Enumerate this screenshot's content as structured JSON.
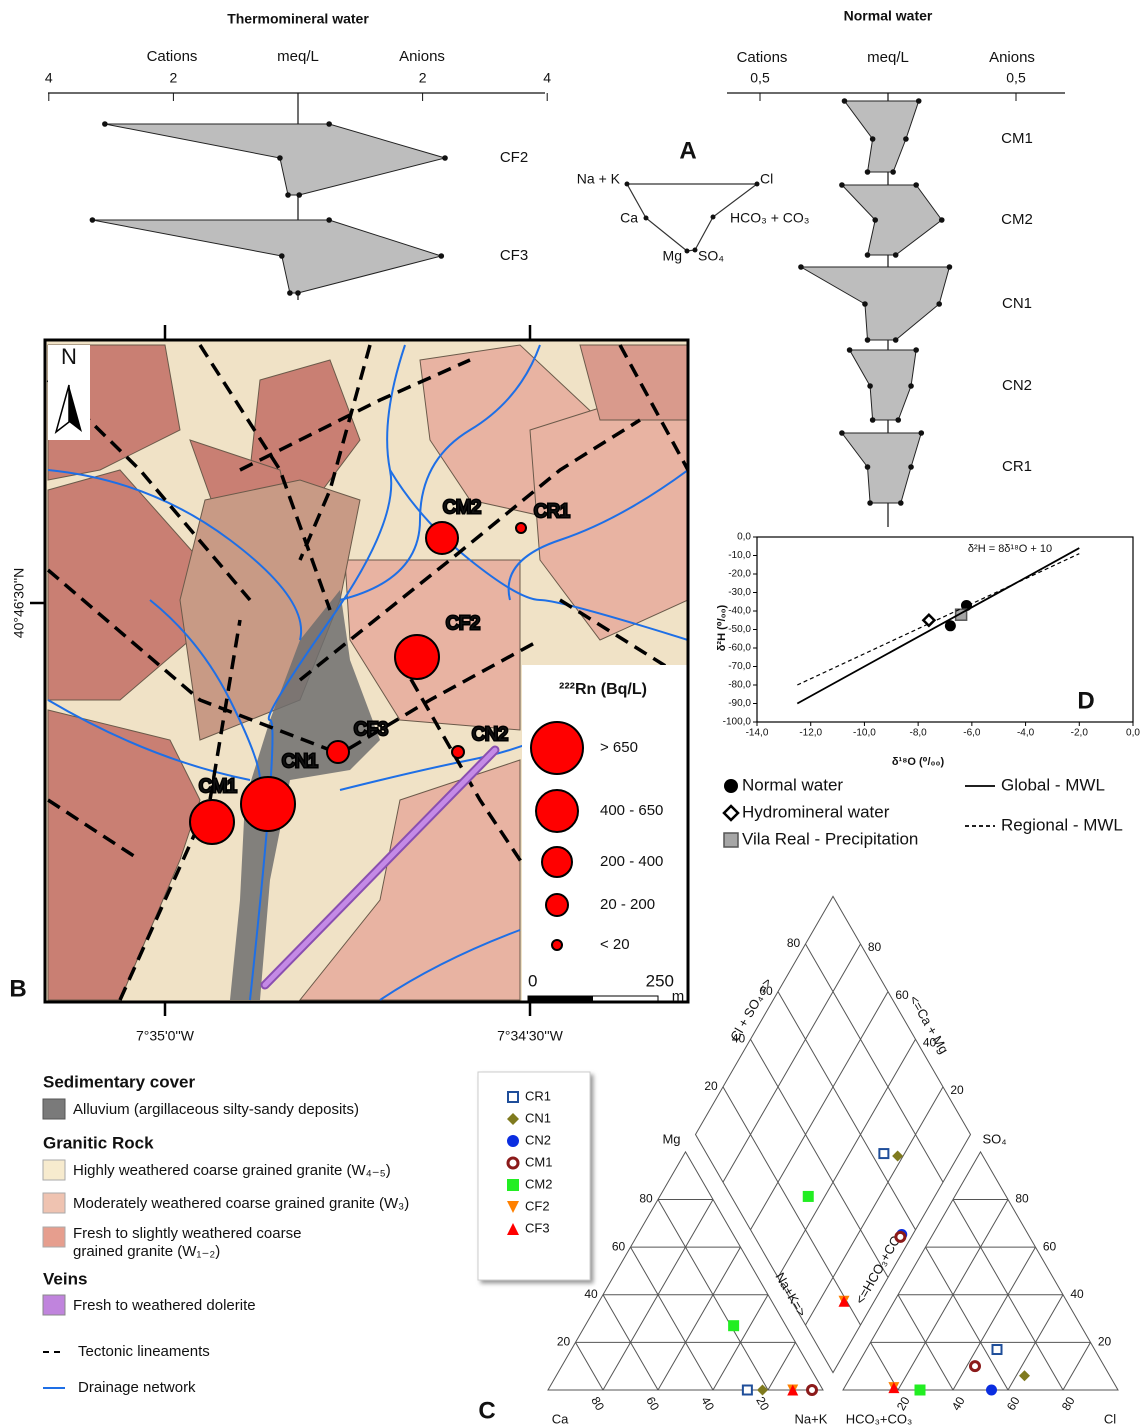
{
  "panel_labels": {
    "a": "A",
    "b": "B",
    "c": "C",
    "d": "D"
  },
  "stiff": {
    "ion_legend": {
      "top_left": "Na + K",
      "top_right": "Cl",
      "mid_left": "Ca",
      "mid_right": "HCO₃ + CO₃",
      "bottom_left": "Mg",
      "bottom_right": "SO₄"
    },
    "thermomineral": {
      "title": "Thermomineral water",
      "cations_label": "Cations",
      "unit": "meq/L",
      "anions_label": "Anions",
      "cation_ticks": [
        4,
        2
      ],
      "anion_ticks": [
        2,
        4
      ],
      "samples": [
        {
          "name": "CF2",
          "na_k": 3.1,
          "cl": 0.5,
          "ca": 0.29,
          "hco3": 2.36,
          "mg": 0.16,
          "so4": 0.02
        },
        {
          "name": "CF3",
          "na_k": 3.3,
          "cl": 0.5,
          "ca": 0.26,
          "hco3": 2.3,
          "mg": 0.13,
          "so4": 0.0
        }
      ]
    },
    "normal": {
      "title": "Normal water",
      "cations_label": "Cations",
      "unit": "meq/L",
      "anions_label": "Anions",
      "cation_ticks": [
        {
          "value": 0.5,
          "label": "0,5"
        }
      ],
      "anion_ticks": [
        {
          "value": 0.5,
          "label": "0,5"
        }
      ],
      "samples": [
        {
          "name": "CM1",
          "na_k": 0.17,
          "cl": 0.12,
          "ca": 0.06,
          "hco3": 0.07,
          "mg": 0.08,
          "so4": 0.02
        },
        {
          "name": "CM2",
          "na_k": 0.18,
          "cl": 0.11,
          "ca": 0.05,
          "hco3": 0.21,
          "mg": 0.08,
          "so4": 0.03
        },
        {
          "name": "CN1",
          "na_k": 0.34,
          "cl": 0.24,
          "ca": 0.09,
          "hco3": 0.2,
          "mg": 0.08,
          "so4": 0.03
        },
        {
          "name": "CN2",
          "na_k": 0.15,
          "cl": 0.11,
          "ca": 0.07,
          "hco3": 0.09,
          "mg": 0.06,
          "so4": 0.04
        },
        {
          "name": "CR1",
          "na_k": 0.18,
          "cl": 0.13,
          "ca": 0.08,
          "hco3": 0.09,
          "mg": 0.07,
          "so4": 0.05
        }
      ]
    }
  },
  "map": {
    "north": "N",
    "lat_label": "40°46'30''N",
    "lon_labels": [
      "7°35'0''W",
      "7°34'30''W"
    ],
    "sites": [
      "CM2",
      "CR1",
      "CF2",
      "CF3",
      "CN2",
      "CN1",
      "CM1"
    ],
    "radon_legend": {
      "title": "²²²Rn (Bq/L)",
      "classes": [
        "> 650",
        "400 - 650",
        "200 - 400",
        "20 - 200",
        "< 20"
      ]
    },
    "scale": {
      "start": 0,
      "end": 250,
      "unit": "m"
    }
  },
  "legend": {
    "sedimentary": {
      "title": "Sedimentary cover",
      "items": [
        "Alluvium (argillaceous silty-sandy deposits)"
      ]
    },
    "granitic": {
      "title": "Granitic Rock",
      "items": [
        "Highly weathered coarse grained granite (W₄₋₅)",
        "Moderately weathered coarse grained granite (W₃)",
        "Fresh to slightly weathered coarse",
        "grained granite (W₁₋₂)"
      ]
    },
    "veins": {
      "title": "Veins",
      "items": [
        "Fresh to weathered dolerite"
      ]
    },
    "lines": [
      "Tectonic lineaments",
      "Drainage network"
    ]
  },
  "piper": {
    "ticks": [
      20,
      40,
      60,
      80
    ],
    "labels": {
      "mg": "Mg",
      "ca": "Ca",
      "na_k": "Na+K",
      "so4": "SO₄",
      "hco3": "HCO₃+CO₃",
      "cl": "Cl",
      "cl_so4_axis": "Cl + SO₄ =>",
      "ca_mg_axis": "<=Ca + Mg",
      "na_k_axis": "Na+K=>",
      "hco3_axis": "<=HCO₃+CO₃"
    },
    "samples": [
      {
        "name": "CR1",
        "marker": "open-square",
        "color": "#1f4e9a",
        "mg": 0,
        "na_k": 72.5,
        "so4": 17,
        "cl": 47.5
      },
      {
        "name": "CN1",
        "marker": "diamond",
        "color": "#7f7a1e",
        "mg": 0,
        "na_k": 78,
        "so4": 6,
        "cl": 63
      },
      {
        "name": "CN2",
        "marker": "circle",
        "color": "#0a2de0",
        "mg": 0,
        "na_k": 96,
        "so4": 0,
        "cl": 54
      },
      {
        "name": "CM1",
        "marker": "ring",
        "color": "#8b1a1a",
        "mg": 0,
        "na_k": 96,
        "so4": 10,
        "cl": 43
      },
      {
        "name": "CM2",
        "marker": "square",
        "color": "#22ee22",
        "mg": 27,
        "na_k": 54,
        "so4": 0,
        "cl": 28
      },
      {
        "name": "CF2",
        "marker": "triangle-down",
        "color": "#ff8000",
        "mg": 0,
        "na_k": 89,
        "so4": 1,
        "cl": 18
      },
      {
        "name": "CF3",
        "marker": "triangle",
        "color": "#ff0000",
        "mg": 0,
        "na_k": 89,
        "so4": 1,
        "cl": 18
      }
    ]
  },
  "chart_data": {
    "type": "scatter",
    "equation": "δ²H = 8δ¹⁸O + 10",
    "xlabel": "δ¹⁸O (⁰/₀₀)",
    "ylabel": "δ²H (⁰/₀₀)",
    "xlim": [
      -14,
      0
    ],
    "ylim": [
      -100,
      0
    ],
    "xticks": [
      {
        "value": -14,
        "label": "-14,0"
      },
      {
        "value": -12,
        "label": "-12,0"
      },
      {
        "value": -10,
        "label": "-10,0"
      },
      {
        "value": -8,
        "label": "-8,0"
      },
      {
        "value": -6,
        "label": "-6,0"
      },
      {
        "value": -4,
        "label": "-4,0"
      },
      {
        "value": -2,
        "label": "-2,0"
      },
      {
        "value": 0,
        "label": "0,0"
      }
    ],
    "yticks": [
      {
        "value": 0,
        "label": "0,0"
      },
      {
        "value": -10,
        "label": "-10,0"
      },
      {
        "value": -20,
        "label": "-20,0"
      },
      {
        "value": -30,
        "label": "-30,0"
      },
      {
        "value": -40,
        "label": "-40,0"
      },
      {
        "value": -50,
        "label": "-50,0"
      },
      {
        "value": -60,
        "label": "-60,0"
      },
      {
        "value": -70,
        "label": "-70,0"
      },
      {
        "value": -80,
        "label": "-80,0"
      },
      {
        "value": -90,
        "label": "-90,0"
      },
      {
        "value": -100,
        "label": "-100,0"
      }
    ],
    "series": [
      {
        "name": "Normal water",
        "marker": "circle",
        "color": "#000000",
        "x": [
          -6.2,
          -6.8
        ],
        "values": [
          -37,
          -48
        ]
      },
      {
        "name": "Hydromineral water",
        "marker": "diamond",
        "color": "#000000",
        "x": [
          -7.6
        ],
        "values": [
          -45
        ]
      },
      {
        "name": "Vila Real - Precipitation",
        "marker": "square",
        "color": "#a6a6a6",
        "x": [
          -6.4
        ],
        "values": [
          -42
        ]
      },
      {
        "name": "Global - MWL",
        "marker": "line",
        "color": "#000000",
        "x": [
          -12.5,
          -2
        ],
        "values": [
          -90,
          -6
        ]
      },
      {
        "name": "Regional - MWL",
        "marker": "dashed-line",
        "color": "#000000",
        "x": [
          -12.5,
          -2
        ],
        "values": [
          -80,
          -9
        ]
      }
    ]
  }
}
